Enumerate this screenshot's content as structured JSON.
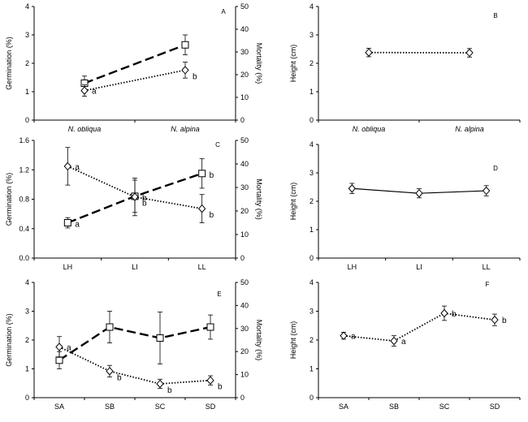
{
  "chart_data": [
    {
      "panel": "A",
      "type": "line",
      "categories": [
        "N. obliqua",
        "N. alpina"
      ],
      "categories_italic": true,
      "ylabel": "Germination (%)",
      "ylim": [
        0,
        4
      ],
      "yticks": [
        0,
        1,
        2,
        3,
        4
      ],
      "y2label": "Mortality (%)",
      "y2lim": [
        0,
        50
      ],
      "y2ticks": [
        0,
        10,
        20,
        30,
        40,
        50
      ],
      "series": [
        {
          "axis": "left",
          "marker": "square",
          "style": "dashed",
          "values": [
            1.3,
            2.65
          ],
          "errors": [
            0.25,
            0.35
          ],
          "labels": [
            "",
            ""
          ]
        },
        {
          "axis": "right",
          "marker": "diamond",
          "style": "dotted",
          "values": [
            13,
            22
          ],
          "errors": [
            2.5,
            3.5
          ],
          "labels": [
            "a",
            "b"
          ]
        }
      ]
    },
    {
      "panel": "B",
      "type": "line",
      "categories": [
        "N. obliqua",
        "N. alpina"
      ],
      "categories_italic": true,
      "ylabel": "Height (cm)",
      "ylim": [
        0,
        4
      ],
      "yticks": [
        0,
        1,
        2,
        3,
        4
      ],
      "series": [
        {
          "axis": "left",
          "marker": "diamond",
          "style": "dotted",
          "values": [
            2.38,
            2.37
          ],
          "errors": [
            0.15,
            0.15
          ],
          "labels": [
            "",
            ""
          ]
        }
      ]
    },
    {
      "panel": "C",
      "type": "line",
      "categories": [
        "LH",
        "LI",
        "LL"
      ],
      "categories_italic": false,
      "ylabel": "Germination (%)",
      "ylim": [
        0,
        1.6
      ],
      "yticks": [
        "0.0",
        "0.4",
        "0.8",
        "1.2",
        "1.6"
      ],
      "y2label": "Mortality (%)",
      "y2lim": [
        0,
        50
      ],
      "y2ticks": [
        0,
        10,
        20,
        30,
        40,
        50
      ],
      "series": [
        {
          "axis": "left",
          "marker": "square",
          "style": "dashed",
          "values": [
            0.48,
            0.84,
            1.15
          ],
          "errors": [
            0.07,
            0.22,
            0.2
          ],
          "labels": [
            "a",
            "b",
            "b"
          ]
        },
        {
          "axis": "right",
          "marker": "diamond",
          "style": "dotted",
          "values": [
            39,
            26,
            21
          ],
          "errors": [
            8,
            8,
            6
          ],
          "labels": [
            "a",
            "b",
            "b"
          ]
        }
      ]
    },
    {
      "panel": "D",
      "type": "line",
      "categories": [
        "LH",
        "LI",
        "LL"
      ],
      "categories_italic": false,
      "ylabel": "Height (cm)",
      "ylim": [
        0,
        4
      ],
      "yticks": [
        0,
        1,
        2,
        3,
        4
      ],
      "series": [
        {
          "axis": "left",
          "marker": "diamond",
          "style": "solid",
          "values": [
            2.45,
            2.28,
            2.37
          ],
          "errors": [
            0.18,
            0.16,
            0.18
          ],
          "labels": [
            "",
            "",
            ""
          ]
        }
      ]
    },
    {
      "panel": "E",
      "type": "line",
      "categories": [
        "SA",
        "SB",
        "SC",
        "SD"
      ],
      "categories_italic": false,
      "ylabel": "Germination (%)",
      "ylim": [
        0,
        4
      ],
      "yticks": [
        0,
        1,
        2,
        3,
        4
      ],
      "y2label": "Mortality (%)",
      "y2lim": [
        0,
        50
      ],
      "y2ticks": [
        0,
        10,
        20,
        30,
        40,
        50
      ],
      "series": [
        {
          "axis": "left",
          "marker": "square",
          "style": "dashed",
          "values": [
            1.3,
            2.45,
            2.07,
            2.45
          ],
          "errors": [
            0.3,
            0.55,
            0.9,
            0.42
          ],
          "labels": [
            "",
            "",
            "",
            ""
          ]
        },
        {
          "axis": "right",
          "marker": "diamond",
          "style": "dotted",
          "values": [
            22,
            11.5,
            6,
            7.5
          ],
          "errors": [
            4.5,
            2.5,
            2,
            2
          ],
          "labels": [
            "a",
            "b",
            "b",
            "b"
          ]
        }
      ]
    },
    {
      "panel": "F",
      "type": "line",
      "categories": [
        "SA",
        "SB",
        "SC",
        "SD"
      ],
      "categories_italic": false,
      "ylabel": "Height (cm)",
      "ylim": [
        0,
        4
      ],
      "yticks": [
        0,
        1,
        2,
        3,
        4
      ],
      "series": [
        {
          "axis": "left",
          "marker": "diamond",
          "style": "dotted",
          "values": [
            2.15,
            1.97,
            2.93,
            2.7
          ],
          "errors": [
            0.12,
            0.18,
            0.25,
            0.2
          ],
          "labels": [
            "a",
            "a",
            "b",
            "b"
          ]
        }
      ]
    }
  ]
}
